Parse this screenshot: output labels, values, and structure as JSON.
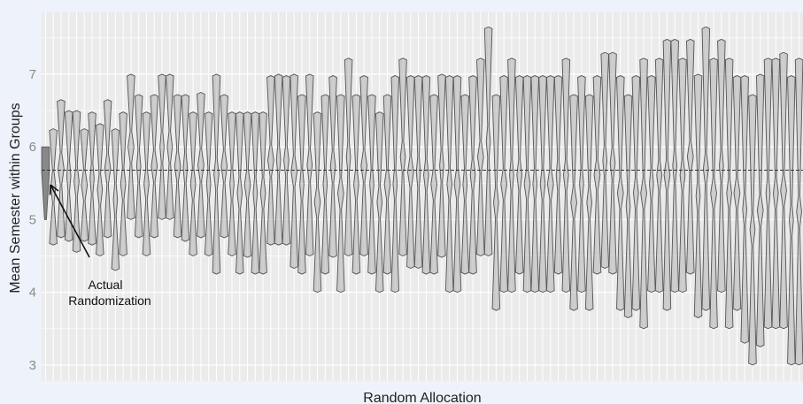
{
  "chart_data": {
    "type": "violin",
    "xlabel": "Random Allocation",
    "ylabel": "Mean Semester within Groups",
    "yticks": [
      3,
      4,
      5,
      6,
      7
    ],
    "ylim": [
      2.78,
      7.85
    ],
    "grid": true,
    "reference_line": {
      "y": 5.68,
      "style": "dashed"
    },
    "annotation": {
      "lines": [
        "Actual",
        "Randomization"
      ],
      "target": "first violin"
    },
    "colors": {
      "panel": "#ebebeb",
      "grid": "#ffffff",
      "violin_fill": "#aaaaaa",
      "violin_stroke": "#555555",
      "background": "#eef2fa"
    },
    "allocations": [
      {
        "min": 5.0,
        "max": 6.0,
        "highlight": true
      },
      {
        "min": 4.65,
        "max": 6.25
      },
      {
        "min": 4.75,
        "max": 6.65
      },
      {
        "min": 4.7,
        "max": 6.5
      },
      {
        "min": 4.55,
        "max": 6.5
      },
      {
        "min": 4.7,
        "max": 6.25
      },
      {
        "min": 4.65,
        "max": 6.48
      },
      {
        "min": 4.5,
        "max": 6.32
      },
      {
        "min": 4.75,
        "max": 6.65
      },
      {
        "min": 4.3,
        "max": 6.25
      },
      {
        "min": 4.5,
        "max": 6.48
      },
      {
        "min": 5.0,
        "max": 7.0
      },
      {
        "min": 4.75,
        "max": 6.72
      },
      {
        "min": 4.5,
        "max": 6.48
      },
      {
        "min": 4.75,
        "max": 6.72
      },
      {
        "min": 5.0,
        "max": 7.0
      },
      {
        "min": 5.0,
        "max": 7.0
      },
      {
        "min": 4.75,
        "max": 6.72
      },
      {
        "min": 4.7,
        "max": 6.72
      },
      {
        "min": 4.5,
        "max": 6.48
      },
      {
        "min": 4.75,
        "max": 6.75
      },
      {
        "min": 4.5,
        "max": 6.48
      },
      {
        "min": 4.25,
        "max": 7.0
      },
      {
        "min": 4.75,
        "max": 6.72
      },
      {
        "min": 4.5,
        "max": 6.48
      },
      {
        "min": 4.25,
        "max": 6.48
      },
      {
        "min": 4.48,
        "max": 6.48
      },
      {
        "min": 4.25,
        "max": 6.48
      },
      {
        "min": 4.25,
        "max": 6.48
      },
      {
        "min": 4.65,
        "max": 6.98
      },
      {
        "min": 4.65,
        "max": 7.0
      },
      {
        "min": 4.65,
        "max": 6.98
      },
      {
        "min": 4.33,
        "max": 7.0
      },
      {
        "min": 4.25,
        "max": 6.72
      },
      {
        "min": 4.5,
        "max": 7.0
      },
      {
        "min": 4.0,
        "max": 6.48
      },
      {
        "min": 4.25,
        "max": 6.72
      },
      {
        "min": 4.48,
        "max": 6.98
      },
      {
        "min": 4.0,
        "max": 6.72
      },
      {
        "min": 4.5,
        "max": 7.22
      },
      {
        "min": 4.25,
        "max": 6.72
      },
      {
        "min": 4.5,
        "max": 6.98
      },
      {
        "min": 4.25,
        "max": 6.72
      },
      {
        "min": 4.0,
        "max": 6.48
      },
      {
        "min": 4.25,
        "max": 6.72
      },
      {
        "min": 4.0,
        "max": 6.98
      },
      {
        "min": 4.5,
        "max": 7.22
      },
      {
        "min": 4.33,
        "max": 6.98
      },
      {
        "min": 4.33,
        "max": 6.98
      },
      {
        "min": 4.25,
        "max": 6.98
      },
      {
        "min": 4.25,
        "max": 6.72
      },
      {
        "min": 4.48,
        "max": 7.0
      },
      {
        "min": 4.0,
        "max": 6.98
      },
      {
        "min": 4.0,
        "max": 6.98
      },
      {
        "min": 4.25,
        "max": 6.72
      },
      {
        "min": 4.25,
        "max": 6.98
      },
      {
        "min": 4.5,
        "max": 7.22
      },
      {
        "min": 4.5,
        "max": 7.65
      },
      {
        "min": 3.75,
        "max": 6.72
      },
      {
        "min": 4.0,
        "max": 6.98
      },
      {
        "min": 4.0,
        "max": 7.22
      },
      {
        "min": 4.25,
        "max": 6.98
      },
      {
        "min": 4.0,
        "max": 6.98
      },
      {
        "min": 4.0,
        "max": 6.98
      },
      {
        "min": 4.0,
        "max": 6.98
      },
      {
        "min": 4.0,
        "max": 6.98
      },
      {
        "min": 4.25,
        "max": 6.98
      },
      {
        "min": 4.0,
        "max": 7.22
      },
      {
        "min": 3.75,
        "max": 6.72
      },
      {
        "min": 4.0,
        "max": 6.98
      },
      {
        "min": 3.75,
        "max": 6.72
      },
      {
        "min": 4.25,
        "max": 6.98
      },
      {
        "min": 4.33,
        "max": 7.3
      },
      {
        "min": 4.25,
        "max": 7.3
      },
      {
        "min": 3.75,
        "max": 6.98
      },
      {
        "min": 3.65,
        "max": 6.72
      },
      {
        "min": 3.75,
        "max": 6.98
      },
      {
        "min": 3.5,
        "max": 7.22
      },
      {
        "min": 4.0,
        "max": 6.98
      },
      {
        "min": 4.0,
        "max": 7.22
      },
      {
        "min": 3.75,
        "max": 7.48
      },
      {
        "min": 4.0,
        "max": 7.48
      },
      {
        "min": 4.0,
        "max": 7.22
      },
      {
        "min": 4.25,
        "max": 7.48
      },
      {
        "min": 3.65,
        "max": 7.0
      },
      {
        "min": 3.75,
        "max": 7.65
      },
      {
        "min": 3.5,
        "max": 7.22
      },
      {
        "min": 4.0,
        "max": 7.48
      },
      {
        "min": 3.5,
        "max": 7.22
      },
      {
        "min": 3.75,
        "max": 6.98
      },
      {
        "min": 3.3,
        "max": 6.98
      },
      {
        "min": 3.0,
        "max": 6.72
      },
      {
        "min": 3.25,
        "max": 7.0
      },
      {
        "min": 3.5,
        "max": 7.22
      },
      {
        "min": 3.5,
        "max": 7.22
      },
      {
        "min": 3.5,
        "max": 7.3
      },
      {
        "min": 3.0,
        "max": 6.98
      },
      {
        "min": 3.0,
        "max": 7.22
      }
    ]
  }
}
